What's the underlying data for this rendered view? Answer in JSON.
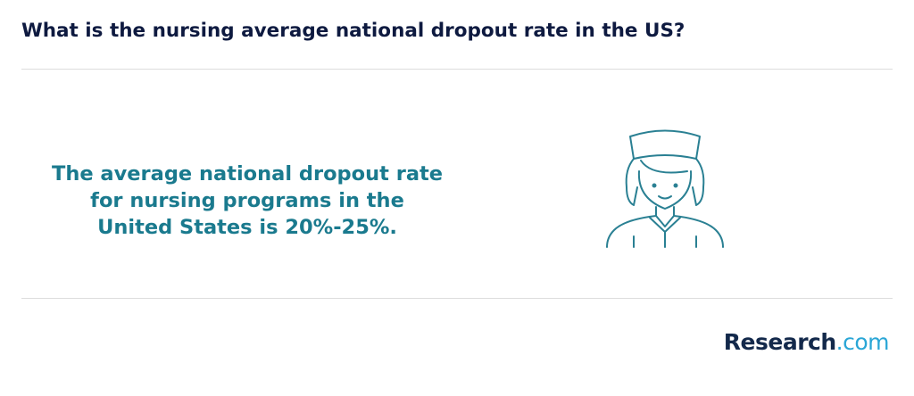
{
  "header": {
    "title": "What is the nursing average national dropout rate in the US?"
  },
  "body": {
    "text": "The average national dropout rate for nursing programs in the United States is 20%-25%."
  },
  "brand": {
    "name": "Research",
    "suffix": ".com"
  }
}
